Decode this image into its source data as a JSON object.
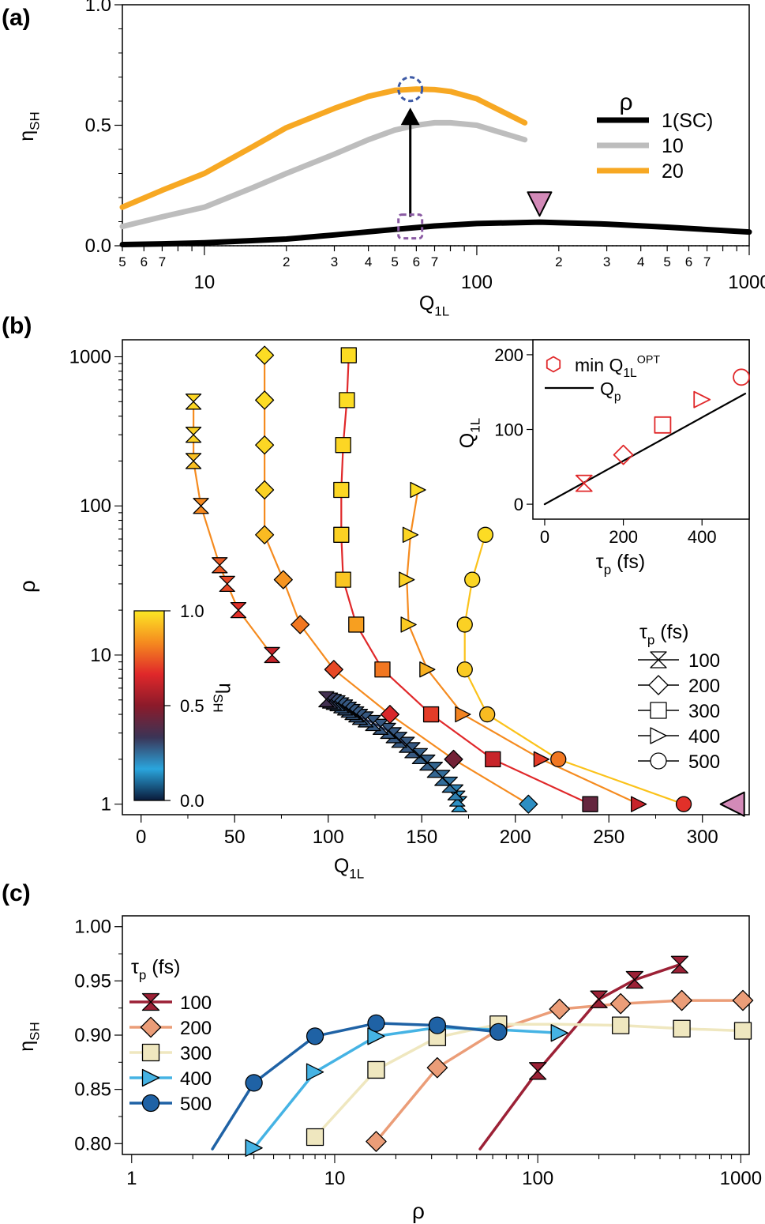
{
  "panels": {
    "a": "(a)",
    "b": "(b)",
    "c": "(c)"
  },
  "chart_data": [
    {
      "id": "a",
      "type": "line",
      "ylabel": {
        "main": "η",
        "sub": "SH"
      },
      "xlabel": {
        "main": "Q",
        "sub": "1L"
      },
      "xscale": "log",
      "xlim": [
        5,
        1000
      ],
      "ylim": [
        0,
        1.0
      ],
      "yticks": [
        0.0,
        0.5,
        1.0
      ],
      "ytick_labels": [
        "0.0",
        "0.5",
        "1.0"
      ],
      "major_x_labels": [
        {
          "x": 10,
          "t": "10"
        },
        {
          "x": 100,
          "t": "100"
        },
        {
          "x": 1000,
          "t": "1000"
        }
      ],
      "minor_x_labels": [
        {
          "x": 5,
          "t": "5"
        },
        {
          "x": 6,
          "t": "6"
        },
        {
          "x": 7,
          "t": "7"
        },
        {
          "x": 20,
          "t": "2"
        },
        {
          "x": 30,
          "t": "3"
        },
        {
          "x": 40,
          "t": "4"
        },
        {
          "x": 50,
          "t": "5"
        },
        {
          "x": 60,
          "t": "6"
        },
        {
          "x": 70,
          "t": "7"
        },
        {
          "x": 200,
          "t": "2"
        },
        {
          "x": 300,
          "t": "3"
        },
        {
          "x": 400,
          "t": "4"
        },
        {
          "x": 500,
          "t": "5"
        },
        {
          "x": 600,
          "t": "6"
        },
        {
          "x": 700,
          "t": "7"
        }
      ],
      "legend_title": "ρ",
      "legend_position": "right",
      "series": [
        {
          "name": "1(SC)",
          "color": "#000000",
          "x": [
            5,
            7,
            10,
            20,
            30,
            50,
            70,
            100,
            170,
            300,
            500,
            1000
          ],
          "y": [
            0.005,
            0.008,
            0.012,
            0.028,
            0.045,
            0.068,
            0.082,
            0.092,
            0.098,
            0.09,
            0.077,
            0.057
          ]
        },
        {
          "name": "10",
          "color": "#bdbdbd",
          "x": [
            5,
            7,
            10,
            15,
            20,
            30,
            40,
            50,
            60,
            70,
            80,
            100,
            150
          ],
          "y": [
            0.08,
            0.12,
            0.16,
            0.24,
            0.3,
            0.38,
            0.44,
            0.48,
            0.5,
            0.51,
            0.51,
            0.5,
            0.44
          ]
        },
        {
          "name": "20",
          "color": "#f7a823",
          "x": [
            5,
            7,
            10,
            15,
            20,
            30,
            40,
            50,
            60,
            70,
            80,
            100,
            150
          ],
          "y": [
            0.16,
            0.23,
            0.3,
            0.41,
            0.49,
            0.57,
            0.62,
            0.645,
            0.65,
            0.648,
            0.64,
            0.61,
            0.51
          ]
        }
      ],
      "annotations": [
        {
          "kind": "dashed-circle",
          "x": 57,
          "y": 0.65,
          "color": "#3d5aa6"
        },
        {
          "kind": "dashed-square",
          "x": 57,
          "y": 0.08,
          "color": "#8a5aa3"
        },
        {
          "kind": "arrow",
          "x": 57,
          "y_from": 0.12,
          "y_to": 0.56
        },
        {
          "kind": "triangle-down",
          "x": 170,
          "y": 0.16,
          "color": "#d38ab8"
        }
      ]
    },
    {
      "id": "b",
      "type": "scatter",
      "xlabel": {
        "main": "Q",
        "sub": "1L"
      },
      "ylabel": "ρ",
      "xlim": [
        -10,
        325
      ],
      "xticks": [
        0,
        50,
        100,
        150,
        200,
        250,
        300
      ],
      "ytick_labels": [
        {
          "v": 1,
          "t": "1"
        },
        {
          "v": 10,
          "t": "10"
        },
        {
          "v": 100,
          "t": "100"
        },
        {
          "v": 1000,
          "t": "1000"
        }
      ],
      "yscale": "log",
      "ylim": [
        0.85,
        1300
      ],
      "colorbar": {
        "label": {
          "main": "η",
          "sub": "SH"
        },
        "ticks": [
          "0.0",
          "0.5",
          "1.0"
        ],
        "stops": [
          "#0a1a3a",
          "#2aa5dd",
          "#3b3456",
          "#8b1a2a",
          "#e0282a",
          "#f58b1f",
          "#fde725"
        ]
      },
      "legend_title": {
        "main": "τ",
        "sub": "p",
        "rest": " (fs)"
      },
      "legend_position": "bottom-right",
      "series": [
        {
          "name": "100",
          "marker": "hourglass",
          "line": "#2a3a66",
          "x": [
            170,
            169,
            168,
            165,
            161,
            157,
            153,
            149,
            145,
            142,
            138,
            135,
            132,
            128,
            124,
            120,
            117,
            115,
            113,
            111,
            109,
            107,
            105,
            103,
            101,
            99
          ],
          "y": [
            1,
            1.09,
            1.2,
            1.35,
            1.5,
            1.7,
            1.9,
            2.1,
            2.3,
            2.5,
            2.7,
            2.9,
            3.1,
            3.3,
            3.5,
            3.7,
            3.85,
            4,
            4.15,
            4.3,
            4.45,
            4.6,
            4.75,
            4.85,
            4.95,
            5.05
          ],
          "c": [
            0.18,
            0.2,
            0.22,
            0.24,
            0.25,
            0.26,
            0.27,
            0.27,
            0.28,
            0.28,
            0.28,
            0.28,
            0.28,
            0.28,
            0.28,
            0.28,
            0.28,
            0.28,
            0.28,
            0.28,
            0.28,
            0.28,
            0.28,
            0.3,
            0.32,
            0.35
          ]
        },
        {
          "name": "100",
          "marker": "hourglass",
          "line": "#f58b1f",
          "x": [
            70,
            52,
            46,
            42,
            32,
            28,
            28,
            28
          ],
          "y": [
            10,
            20,
            30,
            40,
            100,
            200,
            300,
            500
          ],
          "c": [
            0.62,
            0.68,
            0.72,
            0.75,
            0.83,
            0.93,
            0.96,
            0.97
          ]
        },
        {
          "name": "200",
          "marker": "diamond",
          "line": "#f58b1f",
          "x": [
            207,
            167,
            133,
            103,
            85,
            76,
            66,
            66,
            66,
            66,
            66
          ],
          "y": [
            1,
            2,
            4,
            8,
            16,
            32,
            64,
            128,
            256,
            512,
            1024
          ],
          "c": [
            0.2,
            0.45,
            0.65,
            0.72,
            0.8,
            0.85,
            0.92,
            0.96,
            0.97,
            0.98,
            0.98
          ]
        },
        {
          "name": "300",
          "marker": "square",
          "line": "#e0282a",
          "x": [
            240,
            188,
            155,
            129,
            115,
            108,
            107,
            107,
            108,
            110,
            111
          ],
          "y": [
            1,
            2,
            4,
            8,
            16,
            32,
            64,
            128,
            256,
            512,
            1024
          ],
          "c": [
            0.42,
            0.62,
            0.7,
            0.8,
            0.87,
            0.94,
            0.96,
            0.97,
            0.97,
            0.98,
            0.98
          ]
        },
        {
          "name": "400",
          "marker": "triangle-right",
          "line": "#f58b1f",
          "x": [
            266,
            214,
            172,
            153,
            143,
            142,
            144,
            148
          ],
          "y": [
            1,
            2,
            4,
            8,
            16,
            32,
            64,
            128
          ],
          "c": [
            0.62,
            0.7,
            0.82,
            0.9,
            0.95,
            0.96,
            0.97,
            0.98
          ]
        },
        {
          "name": "500",
          "marker": "circle",
          "line": "#fbc21a",
          "x": [
            290,
            223,
            185,
            173,
            173,
            177,
            184
          ],
          "y": [
            1,
            2,
            4,
            8,
            16,
            32,
            64
          ],
          "c": [
            0.68,
            0.8,
            0.92,
            0.95,
            0.96,
            0.97,
            0.98
          ]
        }
      ],
      "extra_marker": {
        "kind": "triangle-left",
        "x": 316,
        "y": 1,
        "color": "#d38ab8"
      },
      "inset": {
        "xlabel": {
          "main": "τ",
          "sub": "p",
          "rest": " (fs)"
        },
        "ylabel": {
          "main": "Q",
          "sub": "1L"
        },
        "xlim": [
          -30,
          520
        ],
        "ylim": [
          -20,
          220
        ],
        "xticks": [
          0,
          200,
          400
        ],
        "yticks": [
          0,
          100,
          200
        ],
        "legend": [
          {
            "label": {
              "main": "min Q",
              "sub": "1L",
              "sup": "OPT"
            },
            "color": "#e0282a"
          },
          {
            "label": {
              "main": "Q",
              "sub": "p"
            },
            "color": "#000000"
          }
        ],
        "points": [
          {
            "x": 100,
            "y": 28,
            "marker": "hourglass"
          },
          {
            "x": 200,
            "y": 66,
            "marker": "diamond"
          },
          {
            "x": 300,
            "y": 106,
            "marker": "square"
          },
          {
            "x": 400,
            "y": 140,
            "marker": "triangle-right"
          },
          {
            "x": 500,
            "y": 170,
            "marker": "circle"
          }
        ],
        "line": {
          "x": [
            0,
            510
          ],
          "y": [
            0,
            148
          ]
        }
      }
    },
    {
      "id": "c",
      "type": "line",
      "xlabel": "ρ",
      "ylabel": {
        "main": "η",
        "sub": "SH"
      },
      "xscale": "log",
      "xlim": [
        0.9,
        1100
      ],
      "ylim": [
        0.79,
        1.01
      ],
      "yticks": [
        0.8,
        0.85,
        0.9,
        0.95,
        1.0
      ],
      "ytick_labels": [
        "0.80",
        "0.85",
        "0.90",
        "0.95",
        "1.00"
      ],
      "xtick_labels": [
        {
          "v": 1,
          "t": "1"
        },
        {
          "v": 10,
          "t": "10"
        },
        {
          "v": 100,
          "t": "100"
        },
        {
          "v": 1000,
          "t": "1000"
        }
      ],
      "legend_title": {
        "main": "τ",
        "sub": "p",
        "rest": " (fs)"
      },
      "legend_position": "left",
      "series": [
        {
          "name": "100",
          "marker": "hourglass",
          "color": "#9c2136",
          "x": [
            52,
            100,
            200,
            300,
            500
          ],
          "y": [
            0.795,
            0.867,
            0.933,
            0.951,
            0.965
          ],
          "marked": [
            false,
            true,
            true,
            true,
            true
          ]
        },
        {
          "name": "200",
          "marker": "diamond",
          "color": "#eb9d78",
          "x": [
            16,
            32,
            64,
            128,
            256,
            512,
            1024
          ],
          "y": [
            0.802,
            0.87,
            0.905,
            0.924,
            0.929,
            0.932,
            0.932
          ],
          "marked": [
            true,
            true,
            false,
            true,
            true,
            true,
            true
          ]
        },
        {
          "name": "300",
          "marker": "square",
          "color": "#efe7bf",
          "x": [
            8,
            16,
            32,
            64,
            128,
            256,
            512,
            1024
          ],
          "y": [
            0.806,
            0.868,
            0.898,
            0.91,
            0.91,
            0.909,
            0.906,
            0.904
          ],
          "marked": [
            true,
            true,
            true,
            true,
            false,
            true,
            true,
            true
          ]
        },
        {
          "name": "400",
          "marker": "triangle-right",
          "color": "#45b3e4",
          "x": [
            4,
            8,
            16,
            32,
            64,
            128
          ],
          "y": [
            0.796,
            0.866,
            0.899,
            0.907,
            0.905,
            0.902
          ],
          "marked": [
            true,
            true,
            true,
            false,
            false,
            true
          ]
        },
        {
          "name": "500",
          "marker": "circle",
          "color": "#1f62a5",
          "x": [
            2.5,
            4,
            8,
            16,
            32,
            64
          ],
          "y": [
            0.795,
            0.856,
            0.899,
            0.911,
            0.909,
            0.903
          ],
          "marked": [
            false,
            true,
            true,
            true,
            true,
            true
          ]
        }
      ]
    }
  ]
}
